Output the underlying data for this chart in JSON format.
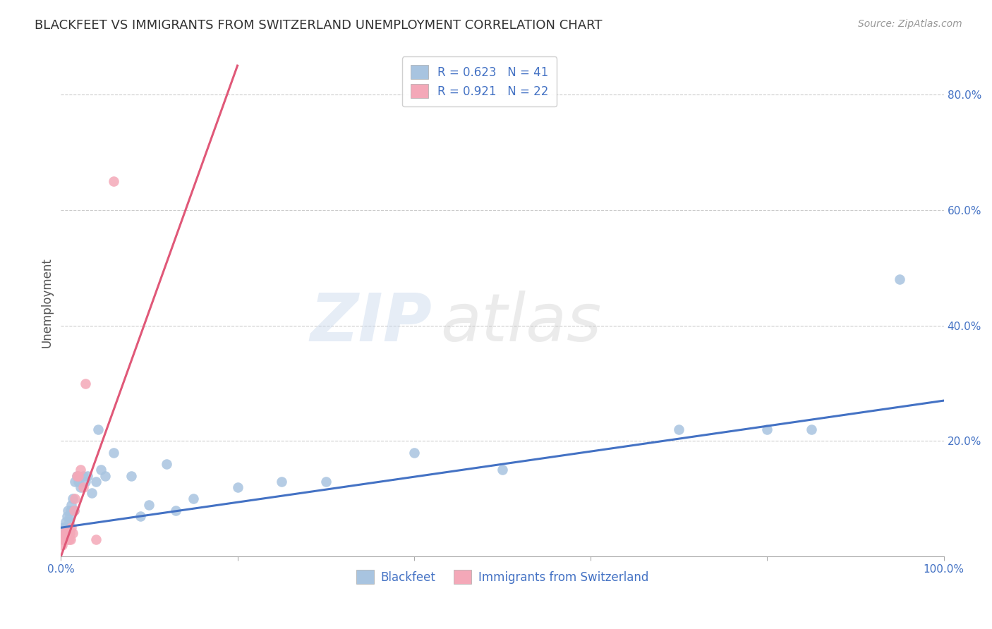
{
  "title": "BLACKFEET VS IMMIGRANTS FROM SWITZERLAND UNEMPLOYMENT CORRELATION CHART",
  "source": "Source: ZipAtlas.com",
  "ylabel": "Unemployment",
  "xlim": [
    0,
    1.0
  ],
  "ylim": [
    0,
    0.88
  ],
  "xticks": [
    0.0,
    0.2,
    0.4,
    0.6,
    0.8,
    1.0
  ],
  "xticklabels": [
    "0.0%",
    "",
    "",
    "",
    "",
    "100.0%"
  ],
  "yticks": [
    0.0,
    0.2,
    0.4,
    0.6,
    0.8
  ],
  "yticklabels": [
    "",
    "20.0%",
    "40.0%",
    "60.0%",
    "80.0%"
  ],
  "grid_yticks": [
    0.2,
    0.4,
    0.6,
    0.8
  ],
  "blackfeet_color": "#a8c4e0",
  "swiss_color": "#f4a8b8",
  "line_blue": "#4472c4",
  "line_pink": "#e05878",
  "R_blackfeet": 0.623,
  "N_blackfeet": 41,
  "R_swiss": 0.921,
  "N_swiss": 22,
  "blackfeet_x": [
    0.002,
    0.003,
    0.004,
    0.005,
    0.006,
    0.007,
    0.008,
    0.009,
    0.01,
    0.011,
    0.012,
    0.013,
    0.015,
    0.016,
    0.018,
    0.02,
    0.022,
    0.025,
    0.028,
    0.03,
    0.035,
    0.04,
    0.042,
    0.045,
    0.05,
    0.06,
    0.08,
    0.09,
    0.1,
    0.12,
    0.13,
    0.15,
    0.2,
    0.25,
    0.3,
    0.4,
    0.5,
    0.7,
    0.8,
    0.85,
    0.95
  ],
  "blackfeet_y": [
    0.05,
    0.04,
    0.05,
    0.06,
    0.05,
    0.07,
    0.08,
    0.06,
    0.07,
    0.08,
    0.09,
    0.1,
    0.08,
    0.13,
    0.14,
    0.13,
    0.12,
    0.14,
    0.13,
    0.14,
    0.11,
    0.13,
    0.22,
    0.15,
    0.14,
    0.18,
    0.14,
    0.07,
    0.09,
    0.16,
    0.08,
    0.1,
    0.12,
    0.13,
    0.13,
    0.18,
    0.15,
    0.22,
    0.22,
    0.22,
    0.48
  ],
  "swiss_x": [
    0.001,
    0.002,
    0.003,
    0.004,
    0.005,
    0.006,
    0.007,
    0.008,
    0.009,
    0.01,
    0.011,
    0.012,
    0.013,
    0.015,
    0.016,
    0.018,
    0.02,
    0.022,
    0.025,
    0.028,
    0.04,
    0.06
  ],
  "swiss_y": [
    0.02,
    0.03,
    0.04,
    0.03,
    0.04,
    0.04,
    0.03,
    0.04,
    0.03,
    0.04,
    0.03,
    0.05,
    0.04,
    0.08,
    0.1,
    0.14,
    0.14,
    0.15,
    0.12,
    0.3,
    0.03,
    0.65
  ],
  "blue_line_x": [
    0.0,
    1.0
  ],
  "blue_line_y": [
    0.05,
    0.27
  ],
  "pink_line_x": [
    0.0,
    0.2
  ],
  "pink_line_y": [
    0.0,
    0.85
  ],
  "watermark_text": "ZIPatlas",
  "background_color": "#ffffff",
  "title_fontsize": 13,
  "axis_label_fontsize": 12,
  "tick_fontsize": 11,
  "legend_fontsize": 12,
  "source_fontsize": 10
}
